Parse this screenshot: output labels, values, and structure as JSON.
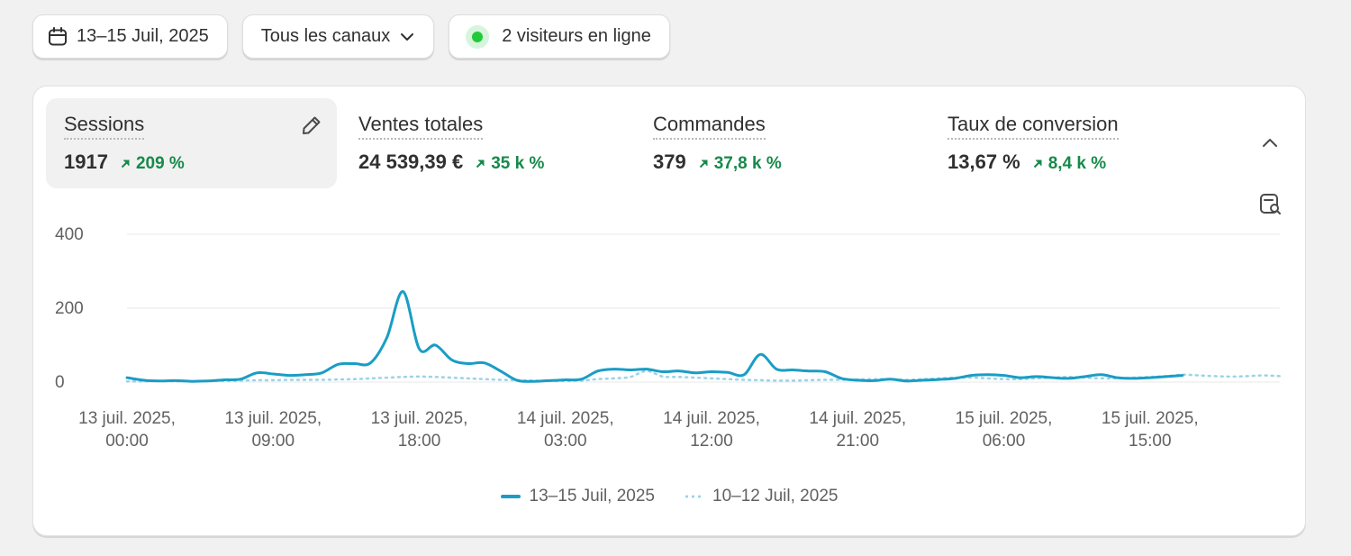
{
  "toolbar": {
    "date_range": "13–15 Juil, 2025",
    "channel": "Tous les canaux",
    "live_visitors": "2 visiteurs en ligne"
  },
  "metrics": [
    {
      "title": "Sessions",
      "value": "1917",
      "delta": "209 %"
    },
    {
      "title": "Ventes totales",
      "value": "24 539,39 €",
      "delta": "35 k %"
    },
    {
      "title": "Commandes",
      "value": "379",
      "delta": "37,8 k %"
    },
    {
      "title": "Taux de conversion",
      "value": "13,67 %",
      "delta": "8,4 k %"
    }
  ],
  "colors": {
    "current": "#1a9dc5",
    "previous": "#9bd3e6",
    "positive": "#168a4a",
    "live_dot": "#22c93a"
  },
  "icons": {
    "date": "calendar-icon",
    "channel": "chevron-down-icon",
    "edit": "pencil-icon",
    "collapse": "chevron-up-icon",
    "insight": "report-search-icon",
    "delta": "arrow-up-right-icon"
  },
  "chart_data": {
    "type": "line",
    "y_ticks": [
      "400",
      "200",
      "0"
    ],
    "ylim": [
      0,
      400
    ],
    "grid": true,
    "legend_position": "bottom",
    "x_tick_labels": [
      [
        "13 juil. 2025,",
        "00:00"
      ],
      [
        "13 juil. 2025,",
        "09:00"
      ],
      [
        "13 juil. 2025,",
        "18:00"
      ],
      [
        "14 juil. 2025,",
        "03:00"
      ],
      [
        "14 juil. 2025,",
        "12:00"
      ],
      [
        "14 juil. 2025,",
        "21:00"
      ],
      [
        "15 juil. 2025,",
        "06:00"
      ],
      [
        "15 juil. 2025,",
        "15:00"
      ]
    ],
    "x_hours_from_start": [
      0,
      1,
      2,
      3,
      4,
      5,
      6,
      7,
      8,
      9,
      10,
      11,
      12,
      13,
      14,
      15,
      16,
      17,
      18,
      19,
      20,
      21,
      22,
      23,
      24,
      25,
      26,
      27,
      28,
      29,
      30,
      31,
      32,
      33,
      34,
      35,
      36,
      37,
      38,
      39,
      40,
      41,
      42,
      43,
      44,
      45,
      46,
      47,
      48,
      49,
      50,
      51,
      52,
      53,
      54,
      55,
      56,
      57,
      58,
      59,
      60,
      61,
      62,
      63,
      64,
      65,
      66,
      67,
      68,
      69,
      70,
      71
    ],
    "series": [
      {
        "name": "13–15 Juil, 2025",
        "style": "solid",
        "values": [
          12,
          5,
          3,
          4,
          2,
          3,
          6,
          8,
          25,
          22,
          18,
          20,
          25,
          48,
          50,
          52,
          120,
          245,
          90,
          100,
          60,
          50,
          52,
          30,
          5,
          2,
          4,
          6,
          8,
          30,
          35,
          33,
          35,
          28,
          30,
          25,
          28,
          26,
          20,
          75,
          35,
          33,
          30,
          28,
          10,
          5,
          4,
          8,
          3,
          5,
          7,
          10,
          18,
          20,
          18,
          12,
          15,
          12,
          10,
          15,
          20,
          12,
          10,
          12,
          15,
          18,
          14,
          12,
          10,
          12,
          15,
          12
        ],
        "x_extent": 65
      },
      {
        "name": "10–12 Juil, 2025",
        "style": "dotted",
        "values": [
          2,
          2,
          3,
          2,
          2,
          3,
          3,
          4,
          5,
          5,
          6,
          6,
          6,
          7,
          8,
          10,
          12,
          14,
          15,
          14,
          12,
          10,
          8,
          6,
          5,
          4,
          3,
          3,
          4,
          8,
          10,
          14,
          30,
          15,
          14,
          12,
          10,
          8,
          6,
          5,
          4,
          4,
          5,
          6,
          6,
          7,
          8,
          8,
          6,
          8,
          10,
          12,
          12,
          10,
          8,
          8,
          10,
          12,
          14,
          12,
          10,
          10,
          12,
          14,
          16,
          20,
          18,
          16,
          15,
          16,
          18,
          16
        ]
      }
    ]
  }
}
